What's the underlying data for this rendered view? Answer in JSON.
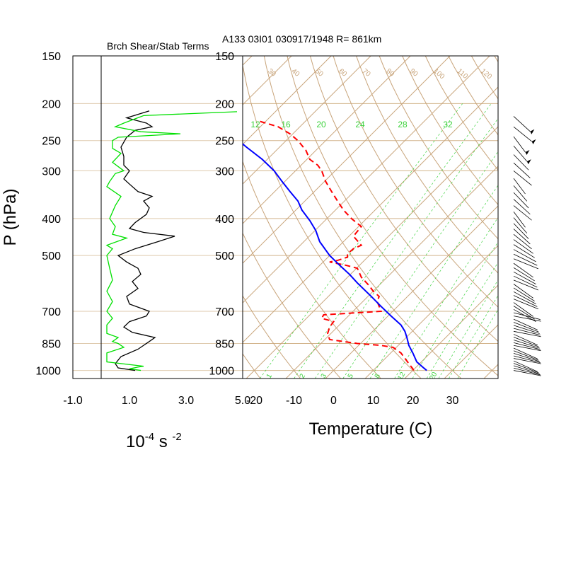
{
  "header": {
    "left_title": "Brch Shear/Stab Terms",
    "right_title": "A133 03I01 030917/1948 R= 861km"
  },
  "colors": {
    "frame": "#000000",
    "isobar": "#d2b48c",
    "isotherm": "#c8a47a",
    "dry_adiabat": "#c8a47a",
    "mixing_ratio": "#3cd23c",
    "temperature": "#ff0000",
    "dewpoint": "#0000ff",
    "shear_term": "#000000",
    "stability_term": "#00e000",
    "wind_barb": "#000000"
  },
  "chart_data": [
    {
      "type": "line",
      "name": "Brch Shear/Stab Terms",
      "xlabel": "10-4 s -2",
      "xlabel_parts": {
        "base": "10",
        "exp": "-4",
        "unit": " s ",
        "unit_exp": "-2"
      },
      "ylabel": "P (hPa)",
      "xlim": [
        -1.0,
        5.0
      ],
      "x_ticks": [
        "-1.0",
        "1.0",
        "3.0",
        "5.0"
      ],
      "x_tick_values": [
        -1,
        1,
        3,
        5
      ],
      "y_scale": "log",
      "ylim": [
        1050,
        150
      ],
      "y_ticks": [
        150,
        200,
        250,
        300,
        400,
        500,
        700,
        850,
        1000
      ],
      "zero_line_x": 0,
      "series": [
        {
          "key": "shear",
          "points": [
            [
              1.2,
              1000
            ],
            [
              0.6,
              985
            ],
            [
              0.5,
              960
            ],
            [
              0.7,
              920
            ],
            [
              1.3,
              880
            ],
            [
              1.7,
              840
            ],
            [
              1.9,
              820
            ],
            [
              1.1,
              795
            ],
            [
              0.8,
              770
            ],
            [
              1.0,
              745
            ],
            [
              1.6,
              720
            ],
            [
              1.7,
              700
            ],
            [
              1.0,
              670
            ],
            [
              0.9,
              640
            ],
            [
              1.3,
              610
            ],
            [
              1.1,
              585
            ],
            [
              1.4,
              560
            ],
            [
              1.3,
              540
            ],
            [
              0.9,
              520
            ],
            [
              0.6,
              500
            ],
            [
              1.2,
              480
            ],
            [
              2.0,
              460
            ],
            [
              2.6,
              445
            ],
            [
              1.5,
              435
            ],
            [
              1.0,
              425
            ],
            [
              1.2,
              410
            ],
            [
              1.6,
              390
            ],
            [
              1.7,
              375
            ],
            [
              1.5,
              360
            ],
            [
              1.8,
              350
            ],
            [
              1.3,
              340
            ],
            [
              1.0,
              325
            ],
            [
              0.8,
              315
            ],
            [
              1.0,
              300
            ],
            [
              0.8,
              290
            ],
            [
              0.8,
              275
            ],
            [
              0.7,
              260
            ],
            [
              0.9,
              245
            ],
            [
              1.2,
              235
            ],
            [
              1.8,
              230
            ],
            [
              1.6,
              225
            ],
            [
              0.9,
              218
            ],
            [
              1.7,
              209
            ]
          ]
        },
        {
          "key": "stability",
          "points": [
            [
              1.4,
              1000
            ],
            [
              1.0,
              990
            ],
            [
              1.3,
              980
            ],
            [
              1.5,
              975
            ],
            [
              0.2,
              950
            ],
            [
              0.2,
              900
            ],
            [
              0.8,
              870
            ],
            [
              0.6,
              850
            ],
            [
              0.4,
              840
            ],
            [
              0.6,
              820
            ],
            [
              0.2,
              800
            ],
            [
              0.2,
              760
            ],
            [
              0.4,
              730
            ],
            [
              0.2,
              700
            ],
            [
              0.4,
              660
            ],
            [
              0.2,
              620
            ],
            [
              0.4,
              580
            ],
            [
              0.3,
              540
            ],
            [
              0.2,
              500
            ],
            [
              0.4,
              480
            ],
            [
              0.2,
              470
            ],
            [
              0.9,
              450
            ],
            [
              0.4,
              440
            ],
            [
              0.5,
              420
            ],
            [
              0.3,
              400
            ],
            [
              0.5,
              370
            ],
            [
              0.7,
              350
            ],
            [
              0.2,
              330
            ],
            [
              0.3,
              320
            ],
            [
              0.5,
              305
            ],
            [
              0.8,
              300
            ],
            [
              0.4,
              285
            ],
            [
              0.7,
              270
            ],
            [
              0.4,
              262
            ],
            [
              0.4,
              250
            ],
            [
              0.6,
              245
            ],
            [
              2.8,
              240
            ],
            [
              1.4,
              237
            ],
            [
              0.5,
              230
            ],
            [
              0.8,
              225
            ],
            [
              1.5,
              215
            ],
            [
              4.8,
              210
            ]
          ]
        }
      ]
    },
    {
      "type": "line",
      "name": "Skew-T",
      "xlabel": "Temperature (C)",
      "xlim": [
        -23,
        42
      ],
      "x_ticks": [
        "-20",
        "-10",
        "0",
        "10",
        "20",
        "30"
      ],
      "x_tick_values": [
        -20,
        -10,
        0,
        10,
        20,
        30
      ],
      "y_scale": "log",
      "ylim": [
        1050,
        150
      ],
      "y_ticks": [
        150,
        200,
        250,
        300,
        400,
        500,
        700,
        850,
        1000
      ],
      "skew": "45 degree isotherms",
      "isotherms_c": [
        -100,
        -90,
        -80,
        -70,
        -60,
        -50,
        -40,
        -30,
        -20,
        -10,
        0,
        10,
        20,
        30,
        40
      ],
      "dry_adiabat_labels": [
        "-30",
        "-20",
        "-10",
        "0",
        "10",
        "20",
        "30",
        "40",
        "50",
        "60",
        "70",
        "80",
        "90",
        "100",
        "110",
        "120",
        "130",
        "140",
        "150"
      ],
      "mixing_ratio_labels": [
        "12",
        "16",
        "20",
        "24",
        "28",
        "32"
      ],
      "mixing_ratio_bottom_labels": [
        "1",
        "2",
        "3",
        "5",
        "8",
        "12",
        "20"
      ],
      "series": [
        {
          "key": "temperature",
          "style": "dashed",
          "points": [
            [
              20.2,
              1000
            ],
            [
              20.0,
              990
            ],
            [
              19.0,
              960
            ],
            [
              17.0,
              900
            ],
            [
              15.0,
              870
            ],
            [
              12.0,
              860
            ],
            [
              6.0,
              850
            ],
            [
              -1.0,
              830
            ],
            [
              -1.5,
              800
            ],
            [
              -1.0,
              770
            ],
            [
              0.0,
              745
            ],
            [
              -3.0,
              730
            ],
            [
              -2.5,
              715
            ],
            [
              12.0,
              700
            ],
            [
              11.0,
              660
            ],
            [
              11.5,
              640
            ],
            [
              10.0,
              620
            ],
            [
              9.0,
              600
            ],
            [
              7.0,
              570
            ],
            [
              6.0,
              540
            ],
            [
              3.0,
              530
            ],
            [
              -1.0,
              520
            ],
            [
              1.0,
              515
            ],
            [
              3.5,
              505
            ],
            [
              3.5,
              495
            ],
            [
              5.0,
              480
            ],
            [
              7.0,
              470
            ],
            [
              5.0,
              445
            ],
            [
              7.0,
              420
            ],
            [
              4.5,
              400
            ],
            [
              2.5,
              380
            ],
            [
              1.0,
              360
            ],
            [
              -0.5,
              340
            ],
            [
              -2.0,
              320
            ],
            [
              -3.0,
              300
            ],
            [
              -4.0,
              290
            ],
            [
              -6.0,
              280
            ],
            [
              -7.0,
              265
            ],
            [
              -9.0,
              250
            ],
            [
              -11.0,
              240
            ],
            [
              -14.0,
              230
            ],
            [
              -19.0,
              222
            ]
          ]
        },
        {
          "key": "dewpoint",
          "style": "solid",
          "points": [
            [
              23.5,
              1000
            ],
            [
              22.5,
              980
            ],
            [
              21.0,
              950
            ],
            [
              20.0,
              900
            ],
            [
              19.0,
              860
            ],
            [
              18.5,
              820
            ],
            [
              18.0,
              790
            ],
            [
              17.0,
              760
            ],
            [
              14.5,
              720
            ],
            [
              12.0,
              680
            ],
            [
              9.5,
              640
            ],
            [
              6.0,
              590
            ],
            [
              4.0,
              560
            ],
            [
              1.5,
              530
            ],
            [
              -1.0,
              500
            ],
            [
              -3.5,
              460
            ],
            [
              -4.5,
              430
            ],
            [
              -6.0,
              405
            ],
            [
              -8.0,
              380
            ],
            [
              -9.0,
              360
            ],
            [
              -11.0,
              340
            ],
            [
              -13.0,
              320
            ],
            [
              -15.0,
              300
            ],
            [
              -18.0,
              280
            ],
            [
              -22.0,
              260
            ],
            [
              -26.0,
              240
            ],
            [
              -30.0,
              222
            ],
            [
              -34.0,
              212
            ],
            [
              -36.0,
              203
            ]
          ]
        }
      ]
    }
  ]
}
